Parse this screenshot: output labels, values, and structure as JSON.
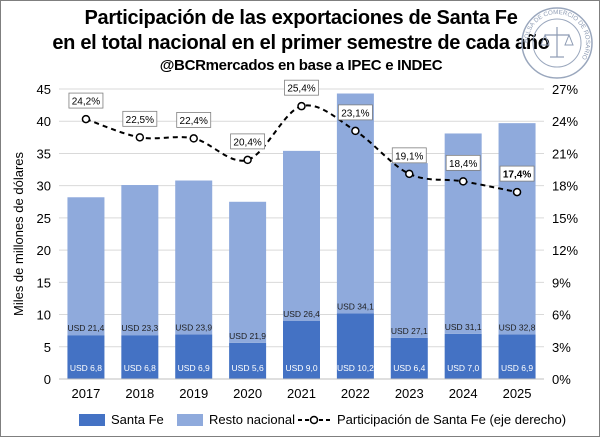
{
  "chart_data": {
    "type": "bar",
    "title": "Participación de las exportaciones de Santa Fe",
    "title_line2": "en el total nacional en el primer semestre de cada año",
    "subtitle": "@BCRmercados en base a IPEC e INDEC",
    "ylabel": "Miles de millones de dólares",
    "ylim": [
      0,
      45
    ],
    "yticks": [
      0,
      5,
      10,
      15,
      20,
      25,
      30,
      35,
      40,
      45
    ],
    "y2lim": [
      0,
      27
    ],
    "y2ticks": [
      "0%",
      "3%",
      "6%",
      "9%",
      "12%",
      "15%",
      "18%",
      "21%",
      "24%",
      "27%"
    ],
    "categories": [
      "2017",
      "2018",
      "2019",
      "2020",
      "2021",
      "2022",
      "2023",
      "2024",
      "2025"
    ],
    "series": [
      {
        "name": "Santa Fe",
        "color": "#4472c4",
        "values": [
          6.8,
          6.8,
          6.9,
          5.6,
          9.0,
          10.2,
          6.4,
          7.0,
          6.9
        ],
        "labels": [
          "USD 6,8",
          "USD 6,8",
          "USD 6,9",
          "USD 5,6",
          "USD 9,0",
          "USD 10,2",
          "USD 6,4",
          "USD 7,0",
          "USD 6,9"
        ]
      },
      {
        "name": "Resto nacional",
        "color": "#8faadc",
        "values": [
          21.4,
          23.3,
          23.9,
          21.9,
          26.4,
          34.1,
          27.1,
          31.1,
          32.8
        ],
        "labels": [
          "USD 21,4",
          "USD 23,3",
          "USD 23,9",
          "USD 21,9",
          "USD 26,4",
          "USD 34,1",
          "USD 27,1",
          "USD 31,1",
          "USD 32,8"
        ]
      },
      {
        "name": "Participación de Santa Fe (eje derecho)",
        "type": "line",
        "axis": "right",
        "color": "#000000",
        "values": [
          24.2,
          22.5,
          22.4,
          20.4,
          25.4,
          23.1,
          19.1,
          18.4,
          17.4
        ],
        "labels": [
          "24,2%",
          "22,5%",
          "22,4%",
          "20,4%",
          "25,4%",
          "23,1%",
          "19,1%",
          "18,4%",
          "17,4%"
        ]
      }
    ],
    "grid": true,
    "legend": "bottom"
  },
  "seal": {
    "ring_text": "BOLSA DE COMERCIO DE ROSARIO"
  }
}
